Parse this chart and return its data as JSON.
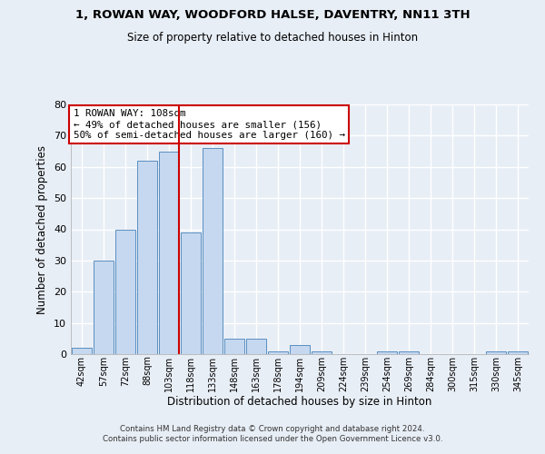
{
  "title": "1, ROWAN WAY, WOODFORD HALSE, DAVENTRY, NN11 3TH",
  "subtitle": "Size of property relative to detached houses in Hinton",
  "xlabel": "Distribution of detached houses by size in Hinton",
  "ylabel": "Number of detached properties",
  "bin_labels": [
    "42sqm",
    "57sqm",
    "72sqm",
    "88sqm",
    "103sqm",
    "118sqm",
    "133sqm",
    "148sqm",
    "163sqm",
    "178sqm",
    "194sqm",
    "209sqm",
    "224sqm",
    "239sqm",
    "254sqm",
    "269sqm",
    "284sqm",
    "300sqm",
    "315sqm",
    "330sqm",
    "345sqm"
  ],
  "bar_heights": [
    2,
    30,
    40,
    62,
    65,
    39,
    66,
    5,
    5,
    1,
    3,
    1,
    0,
    0,
    1,
    1,
    0,
    0,
    0,
    1,
    1
  ],
  "bar_color": "#c5d8f0",
  "bar_edge_color": "#5a8fc0",
  "highlight_bar_index": 4,
  "highlight_line_color": "#cc0000",
  "ylim": [
    0,
    80
  ],
  "yticks": [
    0,
    10,
    20,
    30,
    40,
    50,
    60,
    70,
    80
  ],
  "annotation_title": "1 ROWAN WAY: 108sqm",
  "annotation_line1": "← 49% of detached houses are smaller (156)",
  "annotation_line2": "50% of semi-detached houses are larger (160) →",
  "annotation_box_color": "#ffffff",
  "annotation_box_edge": "#cc0000",
  "footer_line1": "Contains HM Land Registry data © Crown copyright and database right 2024.",
  "footer_line2": "Contains public sector information licensed under the Open Government Licence v3.0.",
  "background_color": "#e8eef6",
  "axes_background": "#e8eef6",
  "grid_color": "#ffffff"
}
